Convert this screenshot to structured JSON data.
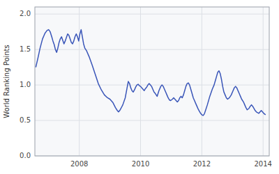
{
  "chart_data": {
    "type": "line",
    "ylabel": "World Ranking Points",
    "color": "#3955b8",
    "grid": true,
    "xlim": [
      2006.55,
      2014.2
    ],
    "xticks": [
      2008,
      2010,
      2012,
      2014
    ],
    "ylim": [
      0,
      2.1
    ],
    "yticks": [
      {
        "value": 0,
        "label": "0.0"
      },
      0.5,
      {
        "value": 1.0,
        "label": "1.0"
      },
      1.5,
      {
        "value": 2.0,
        "label": "2.0"
      }
    ],
    "x": [
      2006.58,
      2006.65,
      2006.72,
      2006.8,
      2006.88,
      2006.95,
      2007.0,
      2007.05,
      2007.1,
      2007.14,
      2007.18,
      2007.22,
      2007.26,
      2007.3,
      2007.34,
      2007.38,
      2007.42,
      2007.46,
      2007.5,
      2007.54,
      2007.58,
      2007.62,
      2007.66,
      2007.7,
      2007.74,
      2007.78,
      2007.82,
      2007.86,
      2007.9,
      2007.94,
      2007.98,
      2008.02,
      2008.06,
      2008.1,
      2008.14,
      2008.18,
      2008.24,
      2008.32,
      2008.42,
      2008.52,
      2008.62,
      2008.72,
      2008.82,
      2008.92,
      2009.0,
      2009.1,
      2009.18,
      2009.24,
      2009.28,
      2009.32,
      2009.36,
      2009.42,
      2009.5,
      2009.56,
      2009.6,
      2009.64,
      2009.68,
      2009.72,
      2009.76,
      2009.8,
      2009.84,
      2009.88,
      2009.92,
      2009.96,
      2010.0,
      2010.04,
      2010.08,
      2010.12,
      2010.16,
      2010.2,
      2010.24,
      2010.28,
      2010.32,
      2010.36,
      2010.4,
      2010.44,
      2010.48,
      2010.54,
      2010.6,
      2010.66,
      2010.7,
      2010.74,
      2010.78,
      2010.82,
      2010.86,
      2010.9,
      2010.94,
      2010.98,
      2011.04,
      2011.08,
      2011.12,
      2011.16,
      2011.2,
      2011.24,
      2011.28,
      2011.32,
      2011.36,
      2011.4,
      2011.44,
      2011.48,
      2011.52,
      2011.56,
      2011.6,
      2011.64,
      2011.68,
      2011.72,
      2011.76,
      2011.8,
      2011.84,
      2011.88,
      2011.92,
      2011.96,
      2012.0,
      2012.04,
      2012.08,
      2012.12,
      2012.18,
      2012.26,
      2012.34,
      2012.4,
      2012.44,
      2012.48,
      2012.52,
      2012.56,
      2012.6,
      2012.64,
      2012.68,
      2012.72,
      2012.76,
      2012.8,
      2012.84,
      2012.9,
      2012.96,
      2013.0,
      2013.06,
      2013.1,
      2013.14,
      2013.18,
      2013.22,
      2013.26,
      2013.3,
      2013.36,
      2013.4,
      2013.44,
      2013.48,
      2013.54,
      2013.58,
      2013.62,
      2013.66,
      2013.7,
      2013.74,
      2013.78,
      2013.82,
      2013.86,
      2013.9,
      2013.94,
      2013.98,
      2014.02,
      2014.08
    ],
    "values": [
      1.25,
      1.38,
      1.52,
      1.65,
      1.73,
      1.77,
      1.78,
      1.75,
      1.68,
      1.62,
      1.57,
      1.5,
      1.46,
      1.52,
      1.6,
      1.65,
      1.68,
      1.63,
      1.58,
      1.62,
      1.67,
      1.72,
      1.7,
      1.65,
      1.6,
      1.58,
      1.62,
      1.68,
      1.72,
      1.68,
      1.62,
      1.72,
      1.78,
      1.68,
      1.58,
      1.52,
      1.48,
      1.4,
      1.28,
      1.15,
      1.02,
      0.93,
      0.86,
      0.82,
      0.8,
      0.75,
      0.68,
      0.64,
      0.62,
      0.64,
      0.67,
      0.72,
      0.82,
      0.96,
      1.05,
      1.02,
      0.96,
      0.92,
      0.9,
      0.93,
      0.97,
      1.0,
      1.01,
      0.99,
      0.98,
      0.96,
      0.94,
      0.92,
      0.95,
      0.97,
      1.0,
      1.02,
      1.0,
      0.98,
      0.94,
      0.9,
      0.88,
      0.84,
      0.92,
      0.98,
      1.0,
      0.98,
      0.94,
      0.9,
      0.86,
      0.82,
      0.79,
      0.78,
      0.8,
      0.82,
      0.8,
      0.78,
      0.76,
      0.78,
      0.82,
      0.84,
      0.82,
      0.86,
      0.92,
      0.98,
      1.02,
      1.03,
      1.0,
      0.94,
      0.88,
      0.82,
      0.78,
      0.74,
      0.7,
      0.66,
      0.63,
      0.6,
      0.58,
      0.57,
      0.59,
      0.64,
      0.72,
      0.84,
      0.94,
      1.0,
      1.06,
      1.12,
      1.18,
      1.2,
      1.16,
      1.08,
      0.98,
      0.9,
      0.86,
      0.82,
      0.8,
      0.82,
      0.86,
      0.9,
      0.96,
      0.98,
      0.96,
      0.92,
      0.88,
      0.84,
      0.8,
      0.76,
      0.72,
      0.68,
      0.65,
      0.67,
      0.7,
      0.72,
      0.7,
      0.67,
      0.64,
      0.62,
      0.61,
      0.6,
      0.62,
      0.64,
      0.62,
      0.6,
      0.58
    ]
  }
}
